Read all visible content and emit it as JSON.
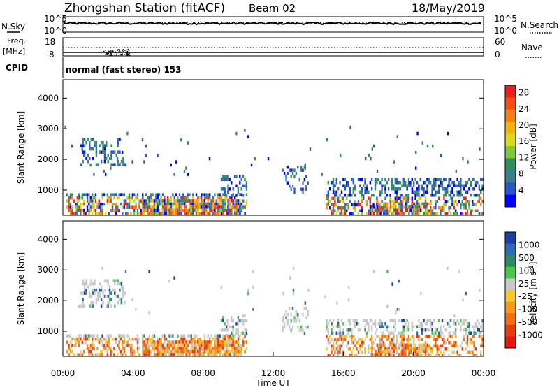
{
  "header": {
    "station": "Zhongshan Station (fitACF)",
    "beam": "Beam 02",
    "date": "18/May/2019"
  },
  "top_panel": {
    "left_label": "N.Sky",
    "right_label": "N.Search",
    "ticks_left": [
      "10^5",
      "10^0"
    ],
    "ticks_right": [
      "10^5",
      "10^0"
    ]
  },
  "freq_panel": {
    "left_label_1": "Freq.",
    "left_label_2": "[MHz]",
    "left_ticks": [
      "18",
      "8"
    ],
    "right_label": "Nave",
    "right_ticks": [
      "60",
      "0"
    ]
  },
  "cpid": {
    "label": "CPID",
    "mode": "normal (fast stereo) 153"
  },
  "chart_data": [
    {
      "type": "heatmap",
      "name": "power",
      "ylabel": "Slant Range [km]",
      "xlabel": "",
      "ylim": [
        180,
        4600
      ],
      "y_ticks": [
        "1000",
        "2000",
        "3000",
        "4000"
      ],
      "colorbar_label": "Power [dB]",
      "colorbar_ticks": [
        "4",
        "8",
        "12",
        "16",
        "20",
        "24",
        "28"
      ],
      "colorbar_colors": [
        "#0000ff",
        "#2b55c8",
        "#3c7f8c",
        "#2f8f5a",
        "#7fc83c",
        "#d8d820",
        "#f7b010",
        "#f68018",
        "#f25012",
        "#e62020"
      ]
    },
    {
      "type": "heatmap",
      "name": "velocity",
      "ylabel": "Slant Range [km]",
      "xlabel": "Time UT",
      "ylim": [
        180,
        4600
      ],
      "y_ticks": [
        "1000",
        "2000",
        "3000",
        "4000"
      ],
      "x_ticks": [
        "00:00",
        "04:00",
        "08:00",
        "12:00",
        "16:00",
        "20:00",
        "00:00"
      ],
      "colorbar_label": "Velocity [m s",
      "colorbar_label_sup": "-1",
      "colorbar_label_end": "]",
      "colorbar_ticks": [
        "1000",
        "500",
        "100",
        "25",
        "-25",
        "-100",
        "-500",
        "-1000"
      ],
      "colorbar_colors": [
        "#1e3ca8",
        "#2d6bb4",
        "#2f8a62",
        "#46c84a",
        "#c8c8c8",
        "#f5c832",
        "#f59a1e",
        "#f26e14",
        "#e63c14",
        "#e61414"
      ]
    }
  ]
}
